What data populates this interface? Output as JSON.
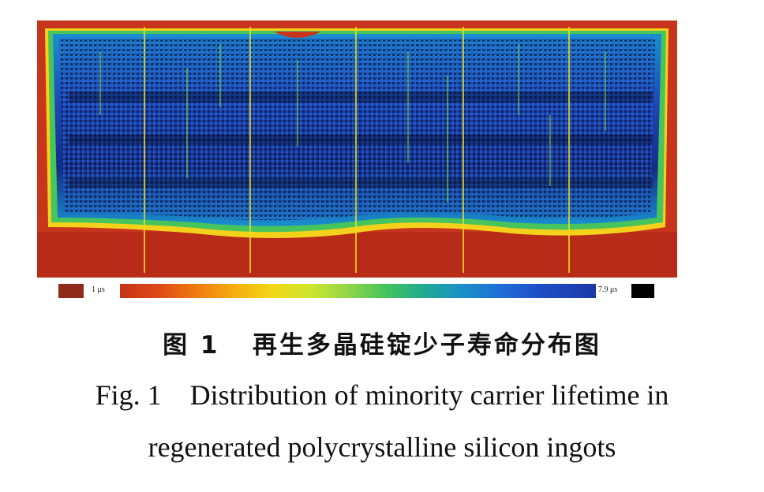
{
  "figure": {
    "image": "minority carrier lifetime map of silicon ingots",
    "colorbar": {
      "min_label": "1 μs",
      "max_label": "7.9 μs",
      "min_color": "#8e2a1a",
      "max_color": "#000000"
    }
  },
  "caption": {
    "cn": "图 1   再生多晶硅锭少子寿命分布图",
    "en_line1": "Fig. 1    Distribution of minority carrier lifetime in",
    "en_line2": "regenerated polycrystalline silicon ingots"
  }
}
